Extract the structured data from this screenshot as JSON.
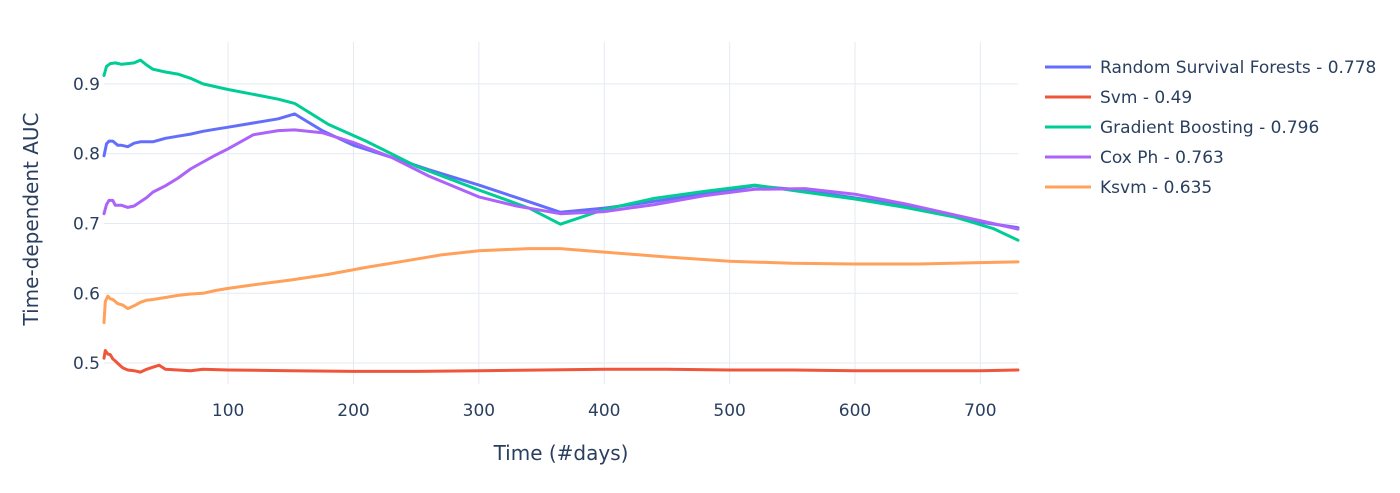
{
  "chart_data": {
    "type": "line",
    "title": "",
    "xlabel": "Time (#days)",
    "ylabel": "Time-dependent AUC",
    "xlim": [
      1,
      730
    ],
    "ylim": [
      0.47,
      0.96
    ],
    "xticks": [
      100,
      200,
      300,
      400,
      500,
      600,
      700
    ],
    "yticks": [
      0.5,
      0.6,
      0.7,
      0.8,
      0.9
    ],
    "grid": true,
    "legend_position": "right",
    "series": [
      {
        "name": "Random Survival Forests - 0.778",
        "color": "#636efa",
        "x": [
          1,
          3,
          5,
          8,
          12,
          15,
          20,
          25,
          30,
          35,
          40,
          50,
          60,
          70,
          80,
          90,
          100,
          120,
          140,
          153,
          175,
          200,
          230,
          260,
          300,
          330,
          365,
          400,
          430,
          460,
          490,
          520,
          550,
          580,
          610,
          640,
          670,
          700,
          730
        ],
        "y": [
          0.797,
          0.814,
          0.818,
          0.818,
          0.812,
          0.812,
          0.81,
          0.815,
          0.817,
          0.817,
          0.817,
          0.822,
          0.825,
          0.828,
          0.832,
          0.835,
          0.838,
          0.844,
          0.85,
          0.857,
          0.833,
          0.812,
          0.795,
          0.777,
          0.755,
          0.737,
          0.716,
          0.722,
          0.729,
          0.737,
          0.745,
          0.754,
          0.749,
          0.742,
          0.734,
          0.725,
          0.713,
          0.702,
          0.694
        ]
      },
      {
        "name": "Svm - 0.49",
        "color": "#ef553b",
        "x": [
          1,
          2,
          4,
          6,
          8,
          10,
          13,
          16,
          20,
          25,
          30,
          35,
          40,
          45,
          50,
          60,
          70,
          80,
          100,
          150,
          200,
          250,
          300,
          350,
          400,
          450,
          500,
          550,
          600,
          650,
          700,
          730
        ],
        "y": [
          0.507,
          0.518,
          0.513,
          0.512,
          0.506,
          0.503,
          0.498,
          0.493,
          0.49,
          0.489,
          0.487,
          0.491,
          0.494,
          0.497,
          0.491,
          0.49,
          0.489,
          0.491,
          0.49,
          0.489,
          0.488,
          0.488,
          0.489,
          0.49,
          0.491,
          0.491,
          0.49,
          0.49,
          0.489,
          0.489,
          0.489,
          0.49
        ]
      },
      {
        "name": "Gradient Boosting - 0.796",
        "color": "#00cc96",
        "x": [
          1,
          3,
          6,
          10,
          15,
          20,
          25,
          30,
          35,
          40,
          50,
          60,
          70,
          80,
          100,
          120,
          140,
          153,
          180,
          210,
          250,
          300,
          340,
          365,
          400,
          440,
          480,
          520,
          560,
          600,
          640,
          680,
          710,
          730
        ],
        "y": [
          0.912,
          0.925,
          0.929,
          0.93,
          0.928,
          0.929,
          0.93,
          0.934,
          0.927,
          0.921,
          0.917,
          0.914,
          0.908,
          0.9,
          0.892,
          0.885,
          0.878,
          0.872,
          0.842,
          0.818,
          0.782,
          0.748,
          0.722,
          0.699,
          0.72,
          0.736,
          0.746,
          0.755,
          0.745,
          0.735,
          0.723,
          0.709,
          0.693,
          0.676
        ]
      },
      {
        "name": "Cox Ph - 0.763",
        "color": "#ab63fa",
        "x": [
          1,
          3,
          5,
          8,
          10,
          15,
          20,
          25,
          30,
          35,
          40,
          50,
          60,
          70,
          80,
          90,
          100,
          120,
          140,
          153,
          175,
          200,
          230,
          260,
          300,
          330,
          365,
          400,
          440,
          480,
          520,
          560,
          600,
          640,
          680,
          710,
          730
        ],
        "y": [
          0.714,
          0.727,
          0.733,
          0.733,
          0.726,
          0.726,
          0.723,
          0.725,
          0.731,
          0.737,
          0.745,
          0.754,
          0.765,
          0.778,
          0.788,
          0.798,
          0.807,
          0.827,
          0.833,
          0.834,
          0.83,
          0.816,
          0.795,
          0.768,
          0.738,
          0.725,
          0.714,
          0.717,
          0.727,
          0.74,
          0.749,
          0.75,
          0.742,
          0.728,
          0.712,
          0.7,
          0.692
        ]
      },
      {
        "name": "Ksvm - 0.635",
        "color": "#ffa15a",
        "x": [
          1,
          2,
          4,
          6,
          8,
          12,
          16,
          20,
          25,
          30,
          35,
          40,
          50,
          60,
          70,
          80,
          90,
          100,
          120,
          150,
          180,
          210,
          240,
          270,
          300,
          340,
          365,
          400,
          450,
          500,
          550,
          600,
          650,
          700,
          730
        ],
        "y": [
          0.558,
          0.588,
          0.596,
          0.592,
          0.591,
          0.585,
          0.583,
          0.578,
          0.582,
          0.587,
          0.59,
          0.591,
          0.594,
          0.597,
          0.599,
          0.6,
          0.604,
          0.607,
          0.612,
          0.619,
          0.627,
          0.637,
          0.646,
          0.655,
          0.661,
          0.664,
          0.664,
          0.659,
          0.652,
          0.646,
          0.643,
          0.642,
          0.642,
          0.644,
          0.645
        ]
      }
    ]
  }
}
